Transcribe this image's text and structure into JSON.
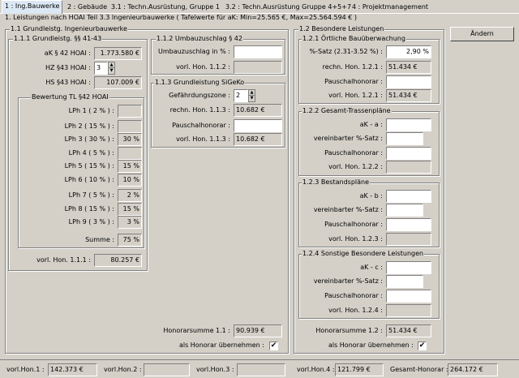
{
  "tabs": [
    "1 : Ing.Bauwerke",
    "2 : Gebäude",
    "3.1 : Techn.Ausrüstung, Gruppe 1",
    "3.2 : Techn.Ausrüstung Gruppe 4+5+7",
    "4 : Projektmanagement"
  ],
  "subtitle": "1. Leistungen nach HOAI Teil 3.3 Ingenieurbauwerke  ( Tafelwerte für aK: Min=25.565 €, Max=25.564.594 € )",
  "change_button": "Ändern",
  "g11": {
    "title": "1.1 Grundleistg. Ingenieurbauwerke",
    "g111": {
      "title": "1.1.1 Grundleistg. §§ 41-43",
      "ak_label": "aK § 42 HOAI :",
      "ak_value": "1.773.580 €",
      "hz_label": "HZ §43 HOAI :",
      "hz_value": "3",
      "hs_label": "HS §43 HOAI :",
      "hs_value": "107.009 €",
      "bew_title": "Bewertung TL §42 HOAI",
      "lph": [
        {
          "label": "LPh 1 ( 2 % ) :",
          "value": ""
        },
        {
          "label": "LPh 2 ( 15 % ) :",
          "value": ""
        },
        {
          "label": "LPh 3 ( 30 % ) :",
          "value": "30 %"
        },
        {
          "label": "LPh 4 ( 5 % ) :",
          "value": ""
        },
        {
          "label": "LPh 5 ( 15 % ) :",
          "value": "15 %"
        },
        {
          "label": "LPh 6 ( 10 % ) :",
          "value": "10 %"
        },
        {
          "label": "LPh 7 ( 5 % ) :",
          "value": "2 %"
        },
        {
          "label": "LPh 8 ( 15 % ) :",
          "value": "15 %"
        },
        {
          "label": "LPh 9 ( 3 % ) :",
          "value": "3 %"
        }
      ],
      "summe_label": "Summe :",
      "summe_value": "75 %",
      "vorl_label": "vorl. Hon. 1.1.1 :",
      "vorl_value": "80.257 €"
    },
    "g112": {
      "title": "1.1.2 Umbauzuschlag § 42",
      "uz_label": "Umbauzuschlag in % :",
      "uz_value": "",
      "vorl_label": "vorl. Hon. 1.1.2 :",
      "vorl_value": ""
    },
    "g113": {
      "title": "1.1.3 Grundleistung SiGeKo",
      "gz_label": "Gefährdungszone :",
      "gz_value": "2",
      "rechn_label": "rechn. Hon. 1.1.3 :",
      "rechn_value": "10.682 €",
      "pausch_label": "Pauschalhonorar :",
      "pausch_value": "",
      "vorl_label": "vorl. Hon. 1.1.3 :",
      "vorl_value": "10.682 €"
    },
    "sum_label": "Honorarsumme 1.1 :",
    "sum_value": "90.939 €",
    "als_label": "als Honorar übernehmen :",
    "als_checked": "✔"
  },
  "g12": {
    "title": "1.2 Besondere Leistungen",
    "g121": {
      "title": "1.2.1 Örtliche Bauüberwachung",
      "satz_label": "%-Satz (2.31-3.52 %) :",
      "satz_value": "2,90 %",
      "rechn_label": "rechn. Hon. 1.2.1 :",
      "rechn_value": "51.434 €",
      "pausch_label": "Pauschalhonorar :",
      "pausch_value": "",
      "vorl_label": "vorl. Hon. 1.2.1 :",
      "vorl_value": "51.434 €"
    },
    "g122": {
      "title": "1.2.2 Gesamt-Trassenpläne",
      "ak_label": "aK - a :",
      "ak_value": "",
      "satz_label": "vereinbarter %-Satz :",
      "satz_value": "",
      "pausch_label": "Pauschalhonorar :",
      "pausch_value": "",
      "vorl_label": "vorl. Hon. 1.2.2 :",
      "vorl_value": ""
    },
    "g123": {
      "title": "1.2.3 Bestandspläne",
      "ak_label": "aK - b :",
      "ak_value": "",
      "satz_label": "vereinbarter %-Satz :",
      "satz_value": "",
      "pausch_label": "Pauschalhonorar :",
      "pausch_value": "",
      "vorl_label": "vorl. Hon. 1.2.3 :",
      "vorl_value": ""
    },
    "g124": {
      "title": "1.2.4 Sonstige Besondere Leistungen",
      "ak_label": "aK - c :",
      "ak_value": "",
      "satz_label": "vereinbarter %-Satz :",
      "satz_value": "",
      "pausch_label": "Pauschalhonorar :",
      "pausch_value": "",
      "vorl_label": "vorl. Hon. 1.2.4 :",
      "vorl_value": ""
    },
    "sum_label": "Honorarsumme 1.2 :",
    "sum_value": "51.434 €",
    "als_label": "als Honorar übernehmen :",
    "als_checked": "✔"
  },
  "status": {
    "h1_label": "vorl.Hon.1 :",
    "h1_value": "142.373 €",
    "h2_label": "vorl.Hon.2 :",
    "h2_value": "",
    "h3_label": "vorl.Hon.3 :",
    "h3_value": "",
    "h4_label": "vorl.Hon.4 :",
    "h4_value": "121.799 €",
    "ges_label": "Gesamt-Honorar :",
    "ges_value": "264.172 €"
  }
}
